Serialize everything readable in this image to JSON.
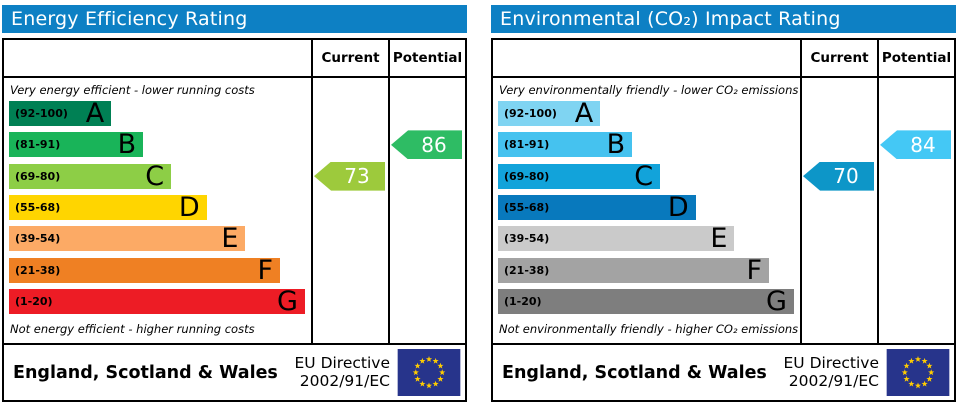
{
  "colors": {
    "header_bg": "#0d80c4",
    "border": "#000000",
    "flag_bg": "#27348b",
    "flag_star": "#ffcc00",
    "arrow_text": "#ffffff"
  },
  "panels": [
    {
      "title": "Energy Efficiency Rating",
      "columns": {
        "current": "Current",
        "potential": "Potential"
      },
      "top_caption": "Very energy efficient - lower running costs",
      "bottom_caption": "Not energy efficient - higher running costs",
      "bands": [
        {
          "letter": "A",
          "range": "(92-100)",
          "color": "#008054",
          "width_pct": 33.3
        },
        {
          "letter": "B",
          "range": "(81-91)",
          "color": "#19b459",
          "width_pct": 43.7
        },
        {
          "letter": "C",
          "range": "(69-80)",
          "color": "#8dce46",
          "width_pct": 52.8
        },
        {
          "letter": "D",
          "range": "(55-68)",
          "color": "#ffd500",
          "width_pct": 64.4
        },
        {
          "letter": "E",
          "range": "(39-54)",
          "color": "#fcaa65",
          "width_pct": 77
        },
        {
          "letter": "F",
          "range": "(21-38)",
          "color": "#ef8023",
          "width_pct": 88.3
        },
        {
          "letter": "G",
          "range": "(1-20)",
          "color": "#ed1c25",
          "width_pct": 96.4
        }
      ],
      "current": {
        "value": 73,
        "band_index": 2,
        "color": "#9dca3c"
      },
      "potential": {
        "value": 86,
        "band_index": 1,
        "color": "#2ebc64"
      },
      "footer": {
        "region": "England, Scotland & Wales",
        "directive_line1": "EU Directive",
        "directive_line2": "2002/91/EC"
      }
    },
    {
      "title": "Environmental (CO₂) Impact Rating",
      "columns": {
        "current": "Current",
        "potential": "Potential"
      },
      "top_caption": "Very environmentally friendly - lower CO₂ emissions",
      "bottom_caption": "Not environmentally friendly - higher CO₂ emissions",
      "bands": [
        {
          "letter": "A",
          "range": "(92-100)",
          "color": "#7fd4f2",
          "width_pct": 33.3
        },
        {
          "letter": "B",
          "range": "(81-91)",
          "color": "#45c2ef",
          "width_pct": 43.7
        },
        {
          "letter": "C",
          "range": "(69-80)",
          "color": "#12a3da",
          "width_pct": 52.8
        },
        {
          "letter": "D",
          "range": "(55-68)",
          "color": "#0879bd",
          "width_pct": 64.4
        },
        {
          "letter": "E",
          "range": "(39-54)",
          "color": "#cacaca",
          "width_pct": 77
        },
        {
          "letter": "F",
          "range": "(21-38)",
          "color": "#a3a3a3",
          "width_pct": 88.3
        },
        {
          "letter": "G",
          "range": "(1-20)",
          "color": "#7e7e7e",
          "width_pct": 96.4
        }
      ],
      "current": {
        "value": 70,
        "band_index": 2,
        "color": "#0d96c8"
      },
      "potential": {
        "value": 84,
        "band_index": 1,
        "color": "#44c8f5"
      },
      "footer": {
        "region": "England, Scotland & Wales",
        "directive_line1": "EU Directive",
        "directive_line2": "2002/91/EC"
      }
    }
  ],
  "chart_data": [
    {
      "type": "bar",
      "orientation": "horizontal",
      "title": "Energy Efficiency Rating",
      "categories": [
        "A (92-100)",
        "B (81-91)",
        "C (69-80)",
        "D (55-68)",
        "E (39-54)",
        "F (21-38)",
        "G (1-20)"
      ],
      "series": [
        {
          "name": "band_length_pct",
          "values": [
            33.3,
            43.7,
            52.8,
            64.4,
            77,
            88.3,
            96.4
          ]
        }
      ],
      "annotations": [
        {
          "label": "Current",
          "value": 73,
          "band": "C"
        },
        {
          "label": "Potential",
          "value": 86,
          "band": "B"
        }
      ],
      "notes": [
        "Very energy efficient - lower running costs",
        "Not energy efficient - higher running costs",
        "England, Scotland & Wales",
        "EU Directive 2002/91/EC"
      ]
    },
    {
      "type": "bar",
      "orientation": "horizontal",
      "title": "Environmental (CO₂) Impact Rating",
      "categories": [
        "A (92-100)",
        "B (81-91)",
        "C (69-80)",
        "D (55-68)",
        "E (39-54)",
        "F (21-38)",
        "G (1-20)"
      ],
      "series": [
        {
          "name": "band_length_pct",
          "values": [
            33.3,
            43.7,
            52.8,
            64.4,
            77,
            88.3,
            96.4
          ]
        }
      ],
      "annotations": [
        {
          "label": "Current",
          "value": 70,
          "band": "C"
        },
        {
          "label": "Potential",
          "value": 84,
          "band": "B"
        }
      ],
      "notes": [
        "Very environmentally friendly - lower CO₂ emissions",
        "Not environmentally friendly - higher CO₂ emissions",
        "England, Scotland & Wales",
        "EU Directive 2002/91/EC"
      ]
    }
  ]
}
